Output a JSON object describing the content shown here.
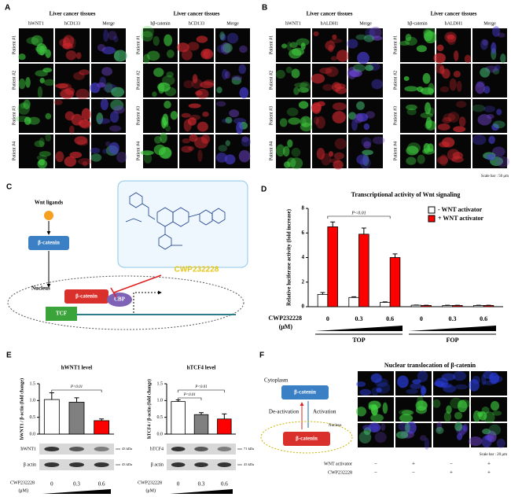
{
  "panel_a": {
    "letter": "A",
    "groups": [
      {
        "title": "Liver cancer tissues",
        "columns": [
          "hWNT1",
          "hCD133",
          "Merge"
        ],
        "rows": [
          "Patient #1",
          "Patient #2",
          "Patient #3",
          "Patient #4"
        ]
      },
      {
        "title": "Liver cancer tissues",
        "columns": [
          "hβ-catenin",
          "hCD133",
          "Merge"
        ],
        "rows": [
          "Patient #1",
          "Patient #2",
          "Patient #3",
          "Patient #4"
        ]
      }
    ]
  },
  "panel_b": {
    "letter": "B",
    "groups": [
      {
        "title": "Liver cancer tissues",
        "columns": [
          "hWNT1",
          "hALDH1",
          "Merge"
        ],
        "rows": [
          "Patient #1",
          "Patient #2",
          "Patient #3",
          "Patient #4"
        ]
      },
      {
        "title": "Liver cancer tissues",
        "columns": [
          "hβ-catenin",
          "hALDH1",
          "Merge"
        ],
        "rows": [
          "Patient #1",
          "Patient #2",
          "Patient #3",
          "Patient #4"
        ]
      }
    ],
    "scale_bar": "Scale bar : 50 μm"
  },
  "panel_c": {
    "letter": "C",
    "ligand": "Wnt ligands",
    "cytoplasm_protein": "β-catenin",
    "drug": "CWP232228",
    "nucleus": "Nucleus",
    "nuclear_protein": "β-catenin",
    "cofactor": "CBP",
    "factor": "TCF"
  },
  "chart_data": [
    {
      "type": "bar",
      "panel": "D",
      "title": "Transcriptional activity of Wnt signaling",
      "y_label": "Relative luciferase activity (fold increase)",
      "x_label": "CWP232228",
      "x_unit": "(μM)",
      "categories": [
        "0",
        "0.3",
        "0.6",
        "0",
        "0.3",
        "0.6"
      ],
      "groups": [
        "TOP",
        "FOP"
      ],
      "series": [
        {
          "name": "- WNT activator",
          "color": "#ffffff",
          "values": [
            1.0,
            0.75,
            0.35,
            0.12,
            0.1,
            0.1
          ],
          "errors": [
            0.15,
            0.06,
            0.04,
            0.02,
            0.02,
            0.02
          ]
        },
        {
          "name": "+ WNT activator",
          "color": "#ff0000",
          "values": [
            6.5,
            5.9,
            4.0,
            0.1,
            0.1,
            0.1
          ],
          "errors": [
            0.4,
            0.5,
            0.3,
            0.02,
            0.02,
            0.02
          ]
        }
      ],
      "ylim": [
        0,
        8
      ],
      "yticks": [
        0,
        2,
        4,
        6,
        8
      ],
      "annotations": [
        "P<0.01"
      ],
      "legend": "upper right"
    },
    {
      "type": "bar",
      "panel": "E",
      "title": "hWNT1 level",
      "y_label": "hWNT1 / β-actin (fold change)",
      "x_label": "CWP232228",
      "x_unit": "(μM)",
      "categories": [
        "0",
        "0.3",
        "0.6"
      ],
      "values": [
        1.03,
        0.95,
        0.4
      ],
      "errors": [
        0.2,
        0.13,
        0.05
      ],
      "colors": [
        "#ffffff",
        "#808080",
        "#ff0000"
      ],
      "ylim": [
        0,
        1.5
      ],
      "yticks": [
        {
          "value": 0,
          "label": "0.0"
        },
        {
          "value": 0.5,
          "label": "0.5"
        },
        {
          "value": 1,
          "label": "1.0"
        },
        {
          "value": 1.5,
          "label": "1.5"
        }
      ],
      "annotations": [
        "P<0.01"
      ],
      "blot": [
        {
          "label": "hWNT1",
          "size": "43 kDa"
        },
        {
          "label": "β actin",
          "size": "43 kDa"
        }
      ]
    },
    {
      "type": "bar",
      "title": "hTCF4 level",
      "y_label": "hTCF4 / β-actin (fold change)",
      "x_label": "CWP232228",
      "x_unit": "(μM)",
      "categories": [
        "0",
        "0.3",
        "0.6"
      ],
      "values": [
        0.97,
        0.58,
        0.45
      ],
      "errors": [
        0.05,
        0.06,
        0.15
      ],
      "colors": [
        "#ffffff",
        "#808080",
        "#ff0000"
      ],
      "ylim": [
        0,
        1.5
      ],
      "yticks": [
        {
          "value": 0,
          "label": "0.0"
        },
        {
          "value": 0.5,
          "label": "0.5"
        },
        {
          "value": 1,
          "label": "1.0"
        },
        {
          "value": 1.5,
          "label": "1.5"
        }
      ],
      "annotations": [
        "P<0.01",
        "P<0.01"
      ],
      "blot": [
        {
          "label": "hTCF4",
          "size": "71 kDa"
        },
        {
          "label": "β actin",
          "size": "43 kDa"
        }
      ]
    }
  ],
  "panel_f": {
    "letter": "F",
    "title": "Nuclear translocation of β-catenin",
    "cytoplasm": "Cytoplasm",
    "cytoplasm_protein": "β-catenin",
    "deactivation": "De-activation",
    "activation": "Activation",
    "nucleus": "Nucleus",
    "nuclear_protein": "β-catenin",
    "scale_bar": "Scale bar : 20 μm",
    "treatments": [
      {
        "name": "WNT activator",
        "signs": [
          "−",
          "+",
          "−",
          "+"
        ]
      },
      {
        "name": "CWP232228",
        "signs": [
          "−",
          "−",
          "+",
          "+"
        ]
      }
    ]
  }
}
